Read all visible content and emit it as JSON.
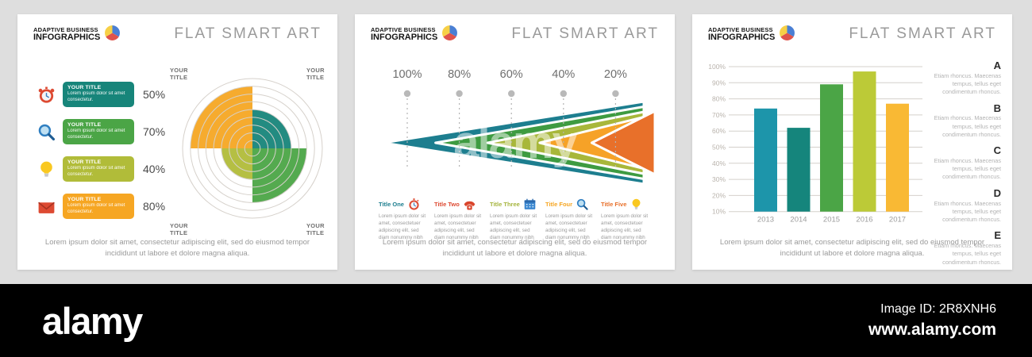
{
  "brand": {
    "line1": "ADAPTIVE BUSINESS",
    "line2": "INFOGRAPHICS"
  },
  "slide_title": "FLAT SMART ART",
  "footer_text": "Lorem ipsum dolor sit amet, consectetur adipiscing elit, sed do eiusmod tempor incididunt ut labore et dolore magna aliqua.",
  "watermark": "alamy",
  "footer_bar": {
    "logo": "alamy",
    "image_id": "Image ID: 2R8XNH6",
    "url": "www.alamy.com"
  },
  "slide1": {
    "items": [
      {
        "icon": "alarm-clock",
        "title": "YOUR TITLE",
        "desc": "Lorem ipsum dolor sit amet consectetur.",
        "percent": "50%",
        "color": "#17857A"
      },
      {
        "icon": "magnifier",
        "title": "YOUR TITLE",
        "desc": "Lorem ipsum dolor sit amet consectetur.",
        "percent": "70%",
        "color": "#4BA546"
      },
      {
        "icon": "light-bulb",
        "title": "YOUR TITLE",
        "desc": "Lorem ipsum dolor sit amet consectetur.",
        "percent": "40%",
        "color": "#B1BC39"
      },
      {
        "icon": "envelope",
        "title": "YOUR TITLE",
        "desc": "Lorem ipsum dolor sit amet consectetur.",
        "percent": "80%",
        "color": "#F6A623"
      }
    ],
    "corner_labels": [
      "YOUR TITLE",
      "YOUR TITLE",
      "YOUR TITLE",
      "YOUR TITLE"
    ]
  },
  "slide2": {
    "steps": [
      {
        "percent": "100%",
        "title": "Title One",
        "icon": "stopwatch",
        "color": "#1D7E8F",
        "desc": "Lorem ipsum dolor sit amet, consectetuer adipiscing elit, sed diam nonummy nibh"
      },
      {
        "percent": "80%",
        "title": "Title Two",
        "icon": "telephone",
        "color": "#DD4A32",
        "desc": "Lorem ipsum dolor sit amet, consectetuer adipiscing elit, sed diam nonummy nibh"
      },
      {
        "percent": "60%",
        "title": "Title Three",
        "icon": "calendar",
        "color": "#A5B43C",
        "desc": "Lorem ipsum dolor sit amet, consectetuer adipiscing elit, sed diam nonummy nibh"
      },
      {
        "percent": "40%",
        "title": "Title Four",
        "icon": "magnifier",
        "color": "#F6A623",
        "desc": "Lorem ipsum dolor sit amet, consectetuer adipiscing elit, sed diam nonummy nibh"
      },
      {
        "percent": "20%",
        "title": "Title Five",
        "icon": "light-bulb",
        "color": "#E8702A",
        "desc": "Lorem ipsum dolor sit amet, consectetuer adipiscing elit, sed diam nonummy nibh"
      }
    ]
  },
  "slide3": {
    "legend": [
      {
        "letter": "A",
        "text": "Etiam rhoncus. Maecenas tempus, tellus eget condimentum rhoncus."
      },
      {
        "letter": "B",
        "text": "Etiam rhoncus. Maecenas tempus, tellus eget condimentum rhoncus."
      },
      {
        "letter": "C",
        "text": "Etiam rhoncus. Maecenas tempus, tellus eget condimentum rhoncus."
      },
      {
        "letter": "D",
        "text": "Etiam rhoncus. Maecenas tempus, tellus eget condimentum rhoncus."
      },
      {
        "letter": "E",
        "text": "Etiam rhoncus. Maecenas tempus, tellus eget condimentum rhoncus."
      }
    ]
  },
  "chart_data": [
    {
      "type": "pie",
      "subtype": "quadrant-polar",
      "title": "",
      "rings": 9,
      "ring_step": 10,
      "max_value": 90,
      "values": [
        {
          "quadrant": "top-left",
          "label": "YOUR TITLE",
          "value": 80,
          "color": "#F6A623"
        },
        {
          "quadrant": "top-right",
          "label": "YOUR TITLE",
          "value": 50,
          "color": "#17857A"
        },
        {
          "quadrant": "bottom-right",
          "label": "YOUR TITLE",
          "value": 70,
          "color": "#4BA546"
        },
        {
          "quadrant": "bottom-left",
          "label": "YOUR TITLE",
          "value": 40,
          "color": "#B1BC39"
        }
      ]
    },
    {
      "type": "funnel",
      "subtype": "nested-arrow",
      "categories": [
        "Title One",
        "Title Two",
        "Title Three",
        "Title Four",
        "Title Five"
      ],
      "values": [
        100,
        80,
        60,
        40,
        20
      ],
      "tick_suffix": "%",
      "colors": [
        "#1D7E8F",
        "#3E9B41",
        "#A8B73A",
        "#F6A227",
        "#E8702A"
      ]
    },
    {
      "type": "bar",
      "categories": [
        "2013",
        "2014",
        "2015",
        "2016",
        "2017"
      ],
      "values": [
        74,
        62,
        89,
        97,
        77
      ],
      "colors": [
        "#1D95AA",
        "#15857C",
        "#4BA546",
        "#BCCA37",
        "#F9B934"
      ],
      "ylim": [
        10,
        100
      ],
      "ytick_step": 10,
      "ytick_suffix": "%",
      "grid": true,
      "xlabel": "",
      "ylabel": ""
    }
  ]
}
